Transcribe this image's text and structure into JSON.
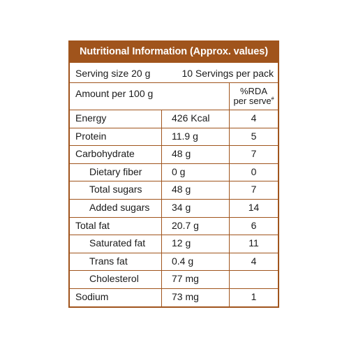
{
  "panel": {
    "title": "Nutritional Information (Approx. values)",
    "accent_color": "#a0541c",
    "serving_size": "Serving size 20 g",
    "servings_per_pack": "10 Servings per pack",
    "amount_label": "Amount per 100 g",
    "rda_header_line1": "%RDA",
    "rda_header_line2": "per serve",
    "rda_header_mark": "#"
  },
  "rows": [
    {
      "name": "Energy",
      "amount": "426 Kcal",
      "rda": "4",
      "indent": false
    },
    {
      "name": "Protein",
      "amount": "11.9 g",
      "rda": "5",
      "indent": false
    },
    {
      "name": "Carbohydrate",
      "amount": "48 g",
      "rda": "7",
      "indent": false
    },
    {
      "name": "Dietary fiber",
      "amount": "0 g",
      "rda": "0",
      "indent": true
    },
    {
      "name": "Total sugars",
      "amount": "48 g",
      "rda": "7",
      "indent": true
    },
    {
      "name": "Added sugars",
      "amount": "34 g",
      "rda": "14",
      "indent": true
    },
    {
      "name": "Total fat",
      "amount": "20.7 g",
      "rda": "6",
      "indent": false
    },
    {
      "name": "Saturated fat",
      "amount": "12 g",
      "rda": "11",
      "indent": true
    },
    {
      "name": "Trans fat",
      "amount": "0.4 g",
      "rda": "4",
      "indent": true
    },
    {
      "name": "Cholesterol",
      "amount": "77 mg",
      "rda": "",
      "indent": true
    },
    {
      "name": "Sodium",
      "amount": "73 mg",
      "rda": "1",
      "indent": false
    }
  ]
}
